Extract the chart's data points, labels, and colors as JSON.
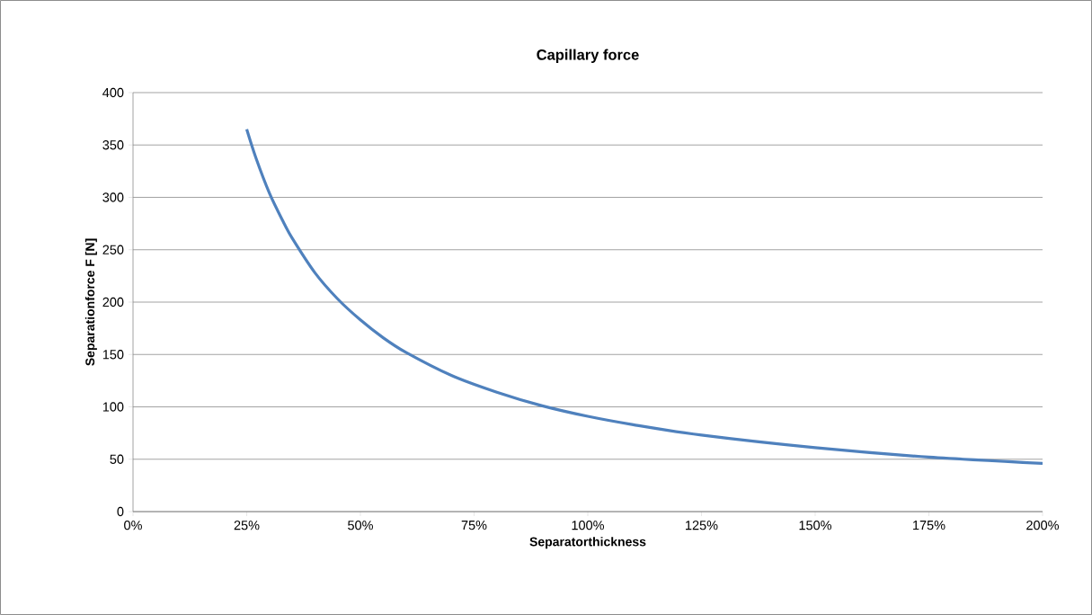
{
  "chart_data": {
    "type": "line",
    "title": "Capillary force",
    "xlabel": "Separatorthickness",
    "ylabel": "Separationforce F [N]",
    "x": [
      25,
      27,
      30,
      33,
      35,
      40,
      45,
      50,
      55,
      60,
      70,
      80,
      90,
      100,
      110,
      125,
      150,
      175,
      200
    ],
    "series": [
      {
        "color": "#4f81bd",
        "values": [
          365,
          338,
          304,
          277,
          261,
          228,
          203,
          183,
          166,
          152,
          130,
          114,
          101,
          91,
          83,
          73,
          61,
          52,
          46
        ]
      }
    ],
    "xlim": [
      0,
      200
    ],
    "ylim": [
      0,
      400
    ],
    "xticks": [
      {
        "value": 0,
        "label": "0%"
      },
      {
        "value": 25,
        "label": "25%"
      },
      {
        "value": 50,
        "label": "50%"
      },
      {
        "value": 75,
        "label": "75%"
      },
      {
        "value": 100,
        "label": "100%"
      },
      {
        "value": 125,
        "label": "125%"
      },
      {
        "value": 150,
        "label": "150%"
      },
      {
        "value": 175,
        "label": "175%"
      },
      {
        "value": 200,
        "label": "200%"
      }
    ],
    "yticks": [
      0,
      50,
      100,
      150,
      200,
      250,
      300,
      350,
      400
    ],
    "grid": "y",
    "marker": "none",
    "line_style": "solid"
  }
}
